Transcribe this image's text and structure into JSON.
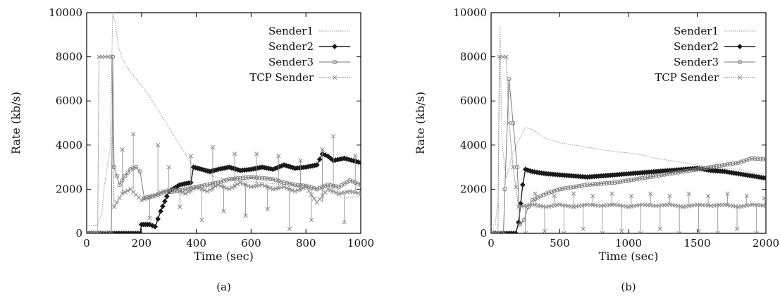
{
  "chart_data": [
    {
      "type": "line",
      "caption": "(a)",
      "xlabel": "Time (sec)",
      "ylabel": "Rate (kb/s)",
      "xlim": [
        0,
        1000
      ],
      "ylim": [
        0,
        10000
      ],
      "xticks": [
        0,
        200,
        400,
        600,
        800,
        1000
      ],
      "yticks": [
        0,
        2000,
        4000,
        6000,
        8000,
        10000
      ],
      "legend_position": "top-right",
      "series": [
        {
          "name": "Sender1",
          "marker": "none",
          "color": "#9a9a9a",
          "points": [
            [
              0,
              350
            ],
            [
              20,
              350
            ],
            [
              40,
              380
            ],
            [
              55,
              900
            ],
            [
              65,
              2200
            ],
            [
              75,
              3000
            ],
            [
              85,
              3800
            ],
            [
              95,
              10000
            ],
            [
              105,
              9500
            ],
            [
              115,
              8500
            ],
            [
              130,
              7900
            ],
            [
              160,
              7300
            ],
            [
              200,
              6700
            ],
            [
              230,
              6200
            ],
            [
              260,
              5600
            ],
            [
              290,
              5000
            ],
            [
              320,
              4400
            ],
            [
              350,
              3800
            ],
            [
              380,
              3200
            ],
            [
              420,
              2800
            ],
            [
              480,
              2500
            ],
            [
              560,
              2400
            ],
            [
              640,
              2300
            ],
            [
              720,
              2200
            ],
            [
              800,
              2100
            ],
            [
              860,
              2000
            ],
            [
              900,
              1800
            ],
            [
              940,
              1600
            ],
            [
              1000,
              1700
            ]
          ]
        },
        {
          "name": "Sender2",
          "marker": "diamond",
          "color": "#1a1a1a",
          "points": [
            [
              0,
              0
            ],
            [
              195,
              0
            ],
            [
              200,
              400
            ],
            [
              230,
              400
            ],
            [
              250,
              300
            ],
            [
              270,
              1000
            ],
            [
              300,
              1900
            ],
            [
              340,
              2200
            ],
            [
              380,
              2300
            ],
            [
              390,
              3000
            ],
            [
              420,
              2900
            ],
            [
              450,
              2800
            ],
            [
              480,
              2900
            ],
            [
              520,
              3000
            ],
            [
              560,
              2850
            ],
            [
              600,
              2900
            ],
            [
              640,
              3000
            ],
            [
              680,
              2900
            ],
            [
              720,
              3100
            ],
            [
              760,
              2950
            ],
            [
              800,
              3000
            ],
            [
              840,
              3100
            ],
            [
              860,
              3600
            ],
            [
              880,
              3500
            ],
            [
              900,
              3300
            ],
            [
              940,
              3400
            ],
            [
              1000,
              3200
            ]
          ]
        },
        {
          "name": "Sender3",
          "marker": "circle",
          "color": "#7a7a7a",
          "points": [
            [
              0,
              0
            ],
            [
              90,
              0
            ],
            [
              95,
              8000
            ],
            [
              100,
              3000
            ],
            [
              120,
              2200
            ],
            [
              140,
              2600
            ],
            [
              160,
              2900
            ],
            [
              180,
              3000
            ],
            [
              195,
              2800
            ],
            [
              210,
              1600
            ],
            [
              250,
              1700
            ],
            [
              280,
              1850
            ],
            [
              320,
              1900
            ],
            [
              360,
              2000
            ],
            [
              400,
              2100
            ],
            [
              440,
              2200
            ],
            [
              480,
              2300
            ],
            [
              520,
              2450
            ],
            [
              560,
              2500
            ],
            [
              600,
              2550
            ],
            [
              640,
              2500
            ],
            [
              680,
              2450
            ],
            [
              720,
              2300
            ],
            [
              760,
              2200
            ],
            [
              800,
              2150
            ],
            [
              840,
              2000
            ],
            [
              880,
              2200
            ],
            [
              920,
              2100
            ],
            [
              960,
              2400
            ],
            [
              1000,
              2200
            ]
          ]
        },
        {
          "name": "TCP Sender",
          "marker": "cross",
          "color": "#888888",
          "points": [
            [
              0,
              0
            ],
            [
              40,
              0
            ],
            [
              45,
              8000
            ],
            [
              90,
              8000
            ],
            [
              100,
              1200
            ],
            [
              130,
              1800
            ],
            [
              160,
              2000
            ],
            [
              200,
              1500
            ],
            [
              240,
              1700
            ],
            [
              280,
              1900
            ],
            [
              320,
              2000
            ],
            [
              360,
              1800
            ],
            [
              400,
              2100
            ],
            [
              440,
              1900
            ],
            [
              480,
              2200
            ],
            [
              520,
              2000
            ],
            [
              560,
              2300
            ],
            [
              600,
              2100
            ],
            [
              640,
              2200
            ],
            [
              680,
              2000
            ],
            [
              720,
              2100
            ],
            [
              760,
              1900
            ],
            [
              800,
              2100
            ],
            [
              840,
              1400
            ],
            [
              880,
              2000
            ],
            [
              920,
              1800
            ],
            [
              960,
              1900
            ],
            [
              1000,
              1800
            ]
          ],
          "spikes": [
            [
              130,
              3800
            ],
            [
              170,
              4500
            ],
            [
              230,
              700
            ],
            [
              260,
              4000
            ],
            [
              300,
              3000
            ],
            [
              340,
              1200
            ],
            [
              380,
              3500
            ],
            [
              420,
              600
            ],
            [
              460,
              3900
            ],
            [
              500,
              1000
            ],
            [
              540,
              3600
            ],
            [
              580,
              800
            ],
            [
              620,
              3600
            ],
            [
              660,
              1100
            ],
            [
              700,
              3500
            ],
            [
              740,
              200
            ],
            [
              780,
              3300
            ],
            [
              820,
              600
            ],
            [
              860,
              3800
            ],
            [
              900,
              4400
            ],
            [
              940,
              500
            ],
            [
              980,
              3500
            ]
          ]
        }
      ]
    },
    {
      "type": "line",
      "caption": "(b)",
      "xlabel": "Time (sec)",
      "ylabel": "Rate (kb/s)",
      "xlim": [
        0,
        2000
      ],
      "ylim": [
        0,
        10000
      ],
      "xticks": [
        0,
        500,
        1000,
        1500,
        2000
      ],
      "yticks": [
        0,
        2000,
        4000,
        6000,
        8000,
        10000
      ],
      "legend_position": "top-right",
      "series": [
        {
          "name": "Sender1",
          "marker": "none",
          "color": "#9a9a9a",
          "points": [
            [
              0,
              300
            ],
            [
              30,
              400
            ],
            [
              50,
              1500
            ],
            [
              65,
              9400
            ],
            [
              80,
              4000
            ],
            [
              110,
              2500
            ],
            [
              150,
              3500
            ],
            [
              200,
              4200
            ],
            [
              250,
              4800
            ],
            [
              300,
              4700
            ],
            [
              400,
              4300
            ],
            [
              500,
              4100
            ],
            [
              600,
              4000
            ],
            [
              700,
              3900
            ],
            [
              800,
              3800
            ],
            [
              900,
              3700
            ],
            [
              1000,
              3650
            ],
            [
              1100,
              3550
            ],
            [
              1200,
              3400
            ],
            [
              1300,
              3300
            ],
            [
              1400,
              3200
            ],
            [
              1500,
              3100
            ],
            [
              1600,
              3000
            ],
            [
              1700,
              2950
            ],
            [
              1800,
              2900
            ],
            [
              1900,
              2750
            ],
            [
              2000,
              2700
            ]
          ]
        },
        {
          "name": "Sender2",
          "marker": "diamond",
          "color": "#1a1a1a",
          "points": [
            [
              0,
              0
            ],
            [
              180,
              0
            ],
            [
              200,
              500
            ],
            [
              230,
              2200
            ],
            [
              250,
              2900
            ],
            [
              300,
              2800
            ],
            [
              400,
              2700
            ],
            [
              500,
              2650
            ],
            [
              600,
              2600
            ],
            [
              700,
              2550
            ],
            [
              800,
              2600
            ],
            [
              900,
              2650
            ],
            [
              1000,
              2700
            ],
            [
              1100,
              2750
            ],
            [
              1200,
              2800
            ],
            [
              1300,
              2850
            ],
            [
              1400,
              2900
            ],
            [
              1500,
              2950
            ],
            [
              1600,
              2850
            ],
            [
              1700,
              2800
            ],
            [
              1800,
              2700
            ],
            [
              1900,
              2600
            ],
            [
              2000,
              2500
            ]
          ]
        },
        {
          "name": "Sender3",
          "marker": "circle",
          "color": "#7a7a7a",
          "points": [
            [
              0,
              0
            ],
            [
              90,
              0
            ],
            [
              100,
              2000
            ],
            [
              130,
              7000
            ],
            [
              160,
              5000
            ],
            [
              190,
              3000
            ],
            [
              210,
              400
            ],
            [
              240,
              600
            ],
            [
              270,
              1200
            ],
            [
              300,
              1500
            ],
            [
              400,
              1800
            ],
            [
              500,
              2000
            ],
            [
              600,
              2100
            ],
            [
              700,
              2200
            ],
            [
              800,
              2250
            ],
            [
              900,
              2300
            ],
            [
              1000,
              2400
            ],
            [
              1100,
              2500
            ],
            [
              1200,
              2600
            ],
            [
              1300,
              2700
            ],
            [
              1400,
              2800
            ],
            [
              1500,
              2900
            ],
            [
              1600,
              3000
            ],
            [
              1700,
              3100
            ],
            [
              1800,
              3200
            ],
            [
              1900,
              3400
            ],
            [
              2000,
              3350
            ]
          ]
        },
        {
          "name": "TCP Sender",
          "marker": "cross",
          "color": "#888888",
          "points": [
            [
              0,
              0
            ],
            [
              50,
              0
            ],
            [
              60,
              8000
            ],
            [
              110,
              8000
            ],
            [
              130,
              5000
            ],
            [
              160,
              3000
            ],
            [
              200,
              1200
            ],
            [
              300,
              1300
            ],
            [
              400,
              1200
            ],
            [
              500,
              1300
            ],
            [
              600,
              1200
            ],
            [
              700,
              1300
            ],
            [
              800,
              1250
            ],
            [
              900,
              1300
            ],
            [
              1000,
              1200
            ],
            [
              1100,
              1300
            ],
            [
              1200,
              1250
            ],
            [
              1300,
              1300
            ],
            [
              1400,
              1200
            ],
            [
              1500,
              1300
            ],
            [
              1600,
              1250
            ],
            [
              1700,
              1300
            ],
            [
              1800,
              1200
            ],
            [
              1900,
              1300
            ],
            [
              2000,
              1250
            ]
          ],
          "spikes": [
            [
              250,
              0
            ],
            [
              320,
              1800
            ],
            [
              390,
              100
            ],
            [
              460,
              1700
            ],
            [
              530,
              0
            ],
            [
              600,
              1800
            ],
            [
              670,
              200
            ],
            [
              740,
              1700
            ],
            [
              810,
              0
            ],
            [
              880,
              1800
            ],
            [
              950,
              100
            ],
            [
              1020,
              1700
            ],
            [
              1090,
              0
            ],
            [
              1160,
              1800
            ],
            [
              1230,
              200
            ],
            [
              1300,
              1700
            ],
            [
              1370,
              0
            ],
            [
              1440,
              1800
            ],
            [
              1510,
              100
            ],
            [
              1580,
              1700
            ],
            [
              1650,
              0
            ],
            [
              1720,
              1800
            ],
            [
              1790,
              200
            ],
            [
              1860,
              1700
            ],
            [
              1930,
              0
            ],
            [
              1990,
              1600
            ]
          ]
        }
      ]
    }
  ]
}
